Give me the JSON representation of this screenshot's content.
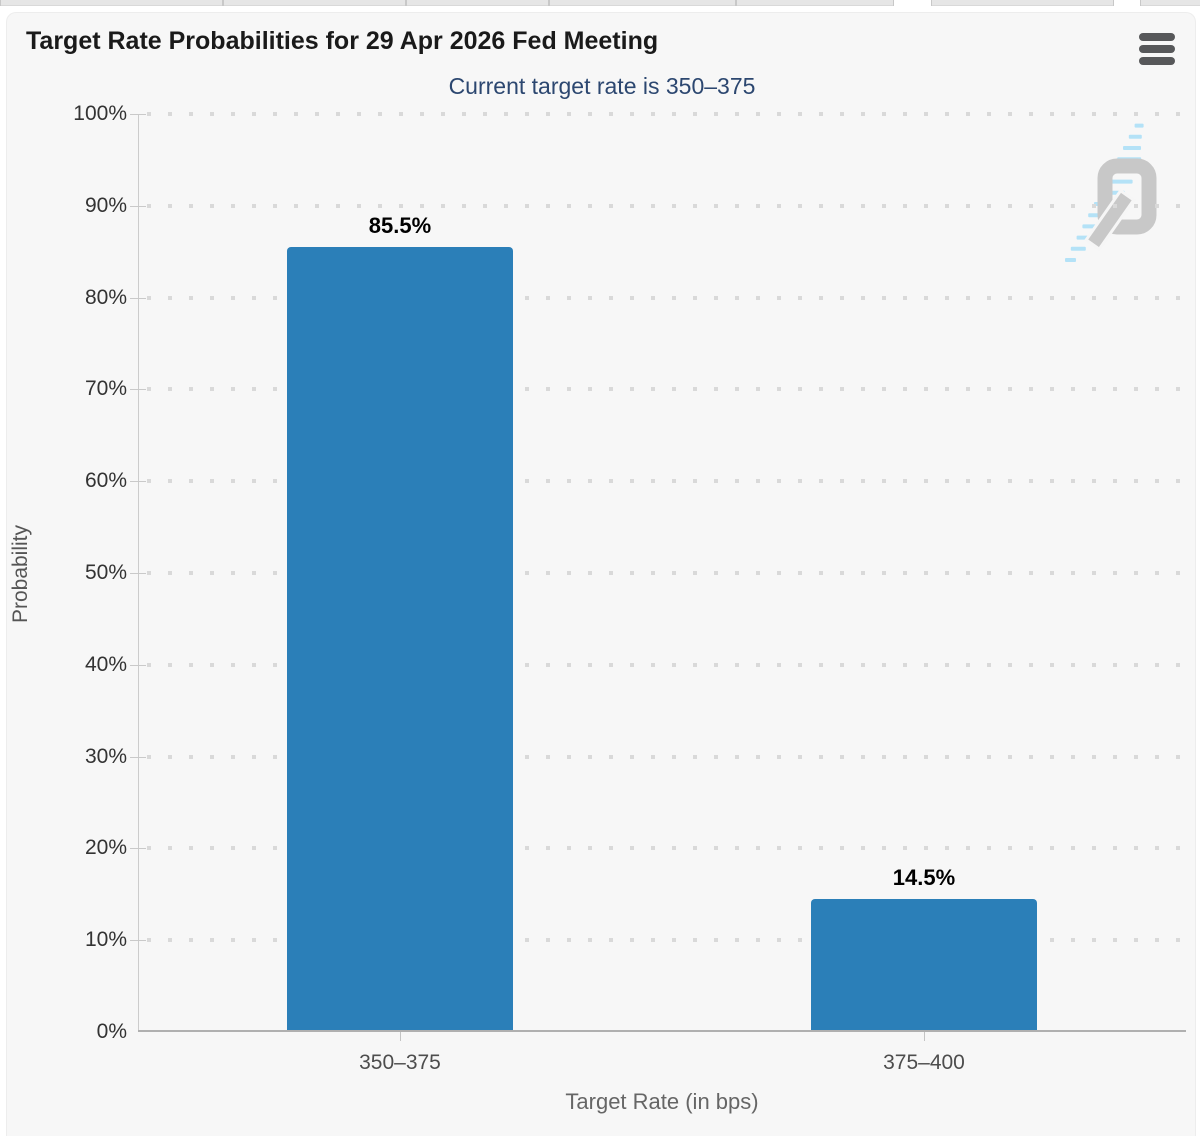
{
  "header": {
    "title": "Target Rate Probabilities for 29 Apr 2026 Fed Meeting",
    "menu_icon": "hamburger-menu-icon"
  },
  "chart_data": {
    "type": "bar",
    "title": "Target Rate Probabilities for 29 Apr 2026 Fed Meeting",
    "subtitle": "Current target rate is 350–375",
    "categories": [
      "350–375",
      "375–400"
    ],
    "values": [
      85.5,
      14.5
    ],
    "value_labels": [
      "85.5%",
      "14.5%"
    ],
    "xlabel": "Target Rate (in bps)",
    "ylabel": "Probability",
    "ylim": [
      0,
      100
    ],
    "ytick_step": 10,
    "ytick_suffix": "%",
    "grid": "dotted-horizontal",
    "legend": "none",
    "bar_color": "#2b7fb8"
  },
  "colors": {
    "bar": "#2b7fb8",
    "subtitle_text": "#2c4770",
    "card_background": "#f7f7f7",
    "grid_dots": "#d9d9d9",
    "watermark_q": "#c3c3c3",
    "watermark_dashes": "#ade0f8"
  },
  "watermark": {
    "icon": "quikstrike-q-logo"
  }
}
